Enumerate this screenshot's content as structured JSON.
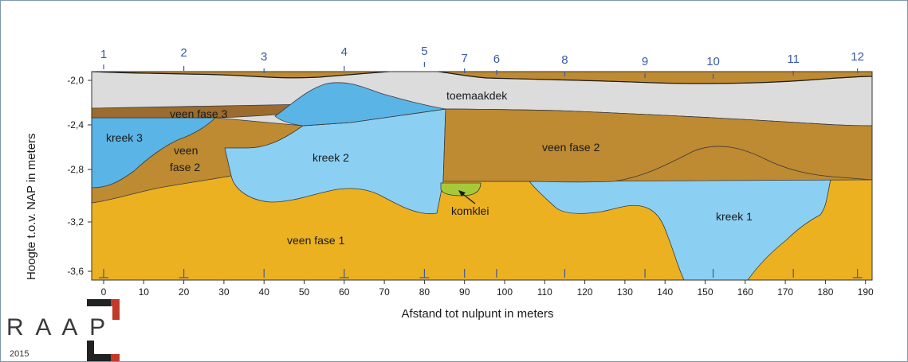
{
  "diagram": {
    "y_axis_title": "Hoogte t.o.v. NAP in meters",
    "x_axis_title": "Afstand tot nulpunt in meters",
    "y_ticks": [
      "-2,0",
      "-2,4",
      "-2,8",
      "-3,2",
      "-3,6"
    ],
    "x_ticks": [
      "0",
      "10",
      "20",
      "30",
      "40",
      "50",
      "60",
      "70",
      "80",
      "90",
      "100",
      "110",
      "120",
      "130",
      "140",
      "150",
      "160",
      "170",
      "180",
      "190"
    ],
    "borings": [
      "1",
      "2",
      "3",
      "4",
      "5",
      "7",
      "6",
      "8",
      "9",
      "10",
      "11",
      "12"
    ],
    "layers": {
      "toemaakdek": "toemaakdek",
      "veen_fase_3": "veen fase 3",
      "kreek_3": "kreek 3",
      "veen_fase_2_left_line1": "veen",
      "veen_fase_2_left_line2": "fase 2",
      "kreek_2": "kreek 2",
      "veen_fase_2_right": "veen fase 2",
      "komklei": "komklei",
      "kreek_1": "kreek 1",
      "veen_fase_1": "veen fase 1"
    },
    "colors": {
      "toemaakdek": "#dcdcdc",
      "veen_fase_3": "#9c6b2e",
      "veen_fase_2": "#be8a32",
      "veen_fase_1": "#ecb121",
      "kreek_2": "#8bd0f3",
      "kreek_3": "#5ab4e6",
      "komklei": "#a6c93a",
      "boring_label": "#3a5aa0"
    }
  },
  "logo": {
    "letters": "R A A P",
    "year": "2015"
  }
}
